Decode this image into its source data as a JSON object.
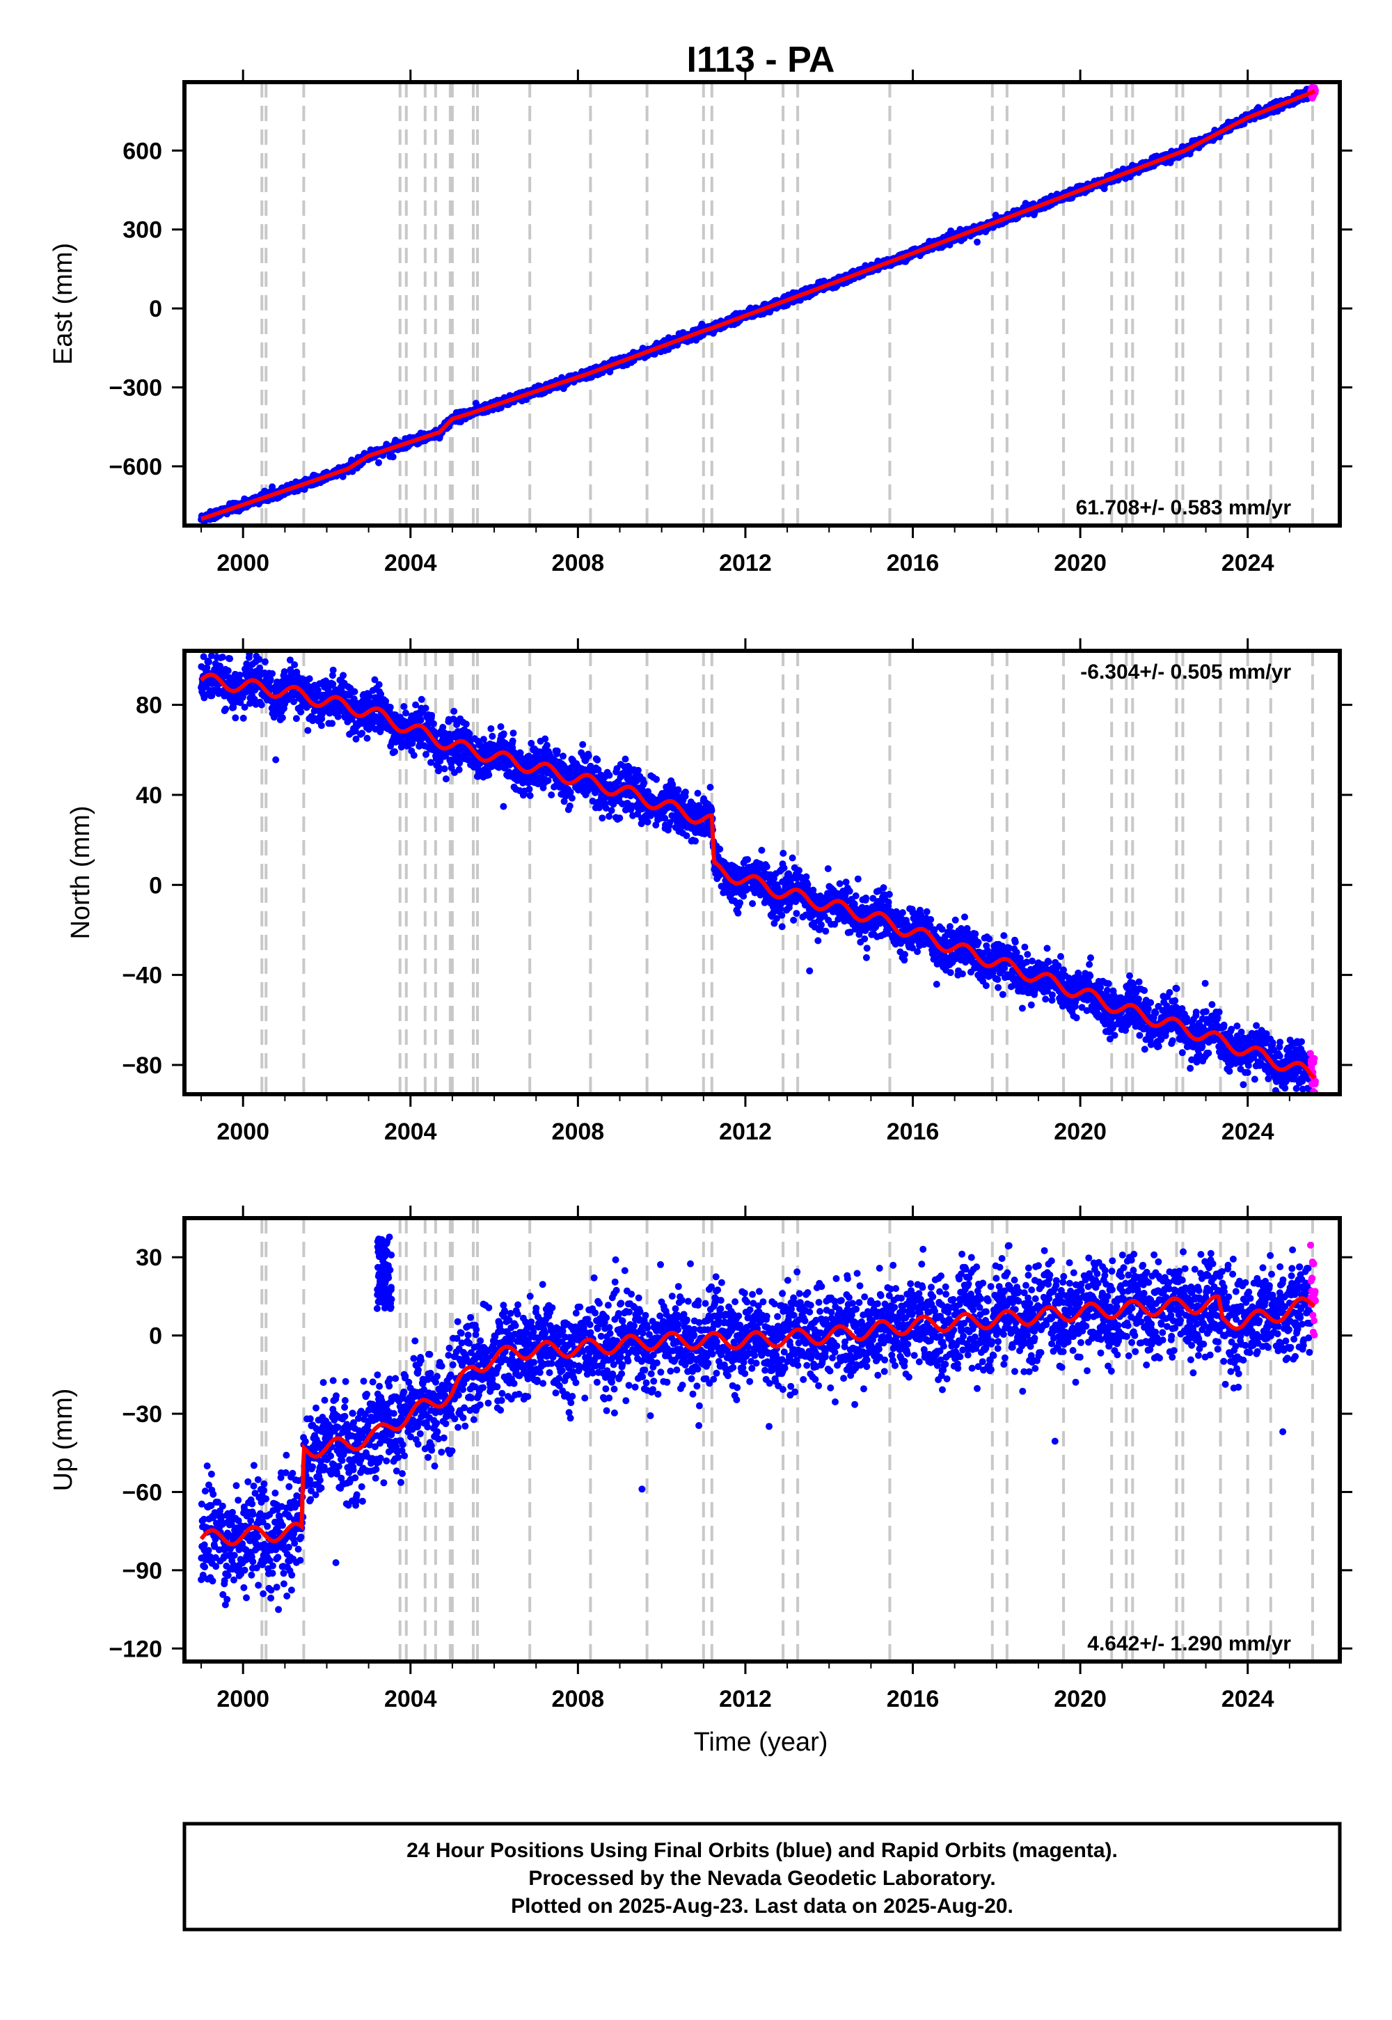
{
  "title": "I113 - PA",
  "colors": {
    "final_orbits": "#0000ff",
    "rapid_orbits": "#ff00ff",
    "model": "#ff0000",
    "event_lines": "#c8c8c8"
  },
  "event_years": [
    2000.45,
    2000.55,
    2001.45,
    2003.75,
    2003.9,
    2004.35,
    2004.6,
    2004.95,
    2005.0,
    2005.5,
    2005.6,
    2006.85,
    2008.3,
    2009.65,
    2011.0,
    2011.2,
    2012.9,
    2013.25,
    2015.45,
    2017.9,
    2018.25,
    2019.6,
    2020.75,
    2021.1,
    2021.25,
    2022.3,
    2022.45,
    2023.35,
    2024.0,
    2024.55,
    2025.55
  ],
  "footer": {
    "line1": "24 Hour Positions Using Final Orbits (blue) and Rapid Orbits (magenta).",
    "line2": "Processed by the Nevada Geodetic Laboratory.",
    "line3": "Plotted on 2025-Aug-23. Last data on 2025-Aug-20."
  },
  "xlabel": "Time (year)",
  "chart_data": [
    {
      "type": "scatter",
      "component": "east",
      "ylabel": "East (mm)",
      "rate_label": "61.708+/- 0.583 mm/yr",
      "rate_position": "bottom-right",
      "xlim": [
        1998.6,
        2026.2
      ],
      "ylim": [
        -825,
        860
      ],
      "xticks": [
        2000,
        2004,
        2008,
        2012,
        2016,
        2020,
        2024
      ],
      "yticks": [
        -600,
        -300,
        0,
        300,
        600
      ],
      "ytick_labels": [
        "−600",
        "−300",
        "0",
        "300",
        "600"
      ],
      "model_line": [
        [
          1999.0,
          -800
        ],
        [
          2001.5,
          -665
        ],
        [
          2002.5,
          -610
        ],
        [
          2003.0,
          -560
        ],
        [
          2004.7,
          -470
        ],
        [
          2005.0,
          -420
        ],
        [
          2005.5,
          -395
        ],
        [
          2008.3,
          -245
        ],
        [
          2011.0,
          -85
        ],
        [
          2011.2,
          -75
        ],
        [
          2015.5,
          180
        ],
        [
          2019.6,
          425
        ],
        [
          2022.5,
          600
        ],
        [
          2024.0,
          725
        ],
        [
          2025.6,
          825
        ]
      ],
      "scatter_noise": 8
    },
    {
      "type": "scatter",
      "component": "north",
      "ylabel": "North (mm)",
      "rate_label": "-6.304+/- 0.505 mm/yr",
      "rate_position": "top-right",
      "xlim": [
        1998.6,
        2026.2
      ],
      "ylim": [
        -93,
        104
      ],
      "xticks": [
        2000,
        2004,
        2008,
        2012,
        2016,
        2020,
        2024
      ],
      "yticks": [
        -80,
        -40,
        0,
        40,
        80
      ],
      "ytick_labels": [
        "−80",
        "−40",
        "0",
        "40",
        "80"
      ],
      "model_line": [
        [
          1999.0,
          91
        ],
        [
          2001.0,
          86
        ],
        [
          2003.0,
          77
        ],
        [
          2005.0,
          62
        ],
        [
          2007.0,
          52
        ],
        [
          2009.0,
          42
        ],
        [
          2011.2,
          28
        ],
        [
          2011.25,
          7
        ],
        [
          2013.0,
          -4
        ],
        [
          2015.0,
          -14
        ],
        [
          2017.0,
          -28
        ],
        [
          2019.0,
          -41
        ],
        [
          2021.0,
          -55
        ],
        [
          2023.0,
          -67
        ],
        [
          2025.5,
          -84
        ]
      ],
      "seasonal_amplitude": 3,
      "scatter_noise": 5
    },
    {
      "type": "scatter",
      "component": "up",
      "ylabel": "Up (mm)",
      "rate_label": "4.642+/- 1.290 mm/yr",
      "rate_position": "bottom-right",
      "xlim": [
        1998.6,
        2026.2
      ],
      "ylim": [
        -125,
        45
      ],
      "xticks": [
        2000,
        2004,
        2008,
        2012,
        2016,
        2020,
        2024
      ],
      "yticks": [
        -120,
        -90,
        -60,
        -30,
        0,
        30
      ],
      "ytick_labels": [
        "−120",
        "−90",
        "−60",
        "−30",
        "0",
        "30"
      ],
      "model_line": [
        [
          1999.0,
          -78
        ],
        [
          2001.4,
          -75
        ],
        [
          2001.45,
          -44
        ],
        [
          2002.5,
          -42
        ],
        [
          2003.2,
          -38
        ],
        [
          2004.0,
          -30
        ],
        [
          2005.0,
          -22
        ],
        [
          2005.5,
          -12
        ],
        [
          2006.5,
          -6
        ],
        [
          2008.0,
          -5
        ],
        [
          2010.0,
          -2
        ],
        [
          2012.0,
          -2
        ],
        [
          2014.0,
          0
        ],
        [
          2016.0,
          4
        ],
        [
          2018.0,
          6
        ],
        [
          2020.0,
          9
        ],
        [
          2022.0,
          11
        ],
        [
          2023.3,
          12
        ],
        [
          2023.4,
          5
        ],
        [
          2024.5,
          7
        ],
        [
          2025.6,
          13
        ]
      ],
      "seasonal_amplitude": 3,
      "scatter_noise": 9,
      "outlier_cluster": {
        "years": [
          2003.2,
          2003.55
        ],
        "values": [
          10,
          38
        ]
      }
    }
  ]
}
